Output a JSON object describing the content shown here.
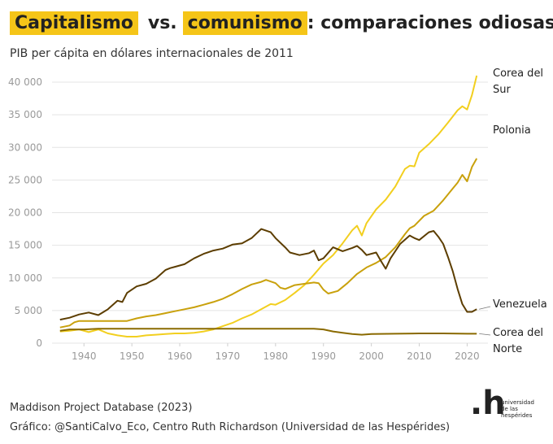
{
  "title": {
    "part1": "Capitalismo",
    "vs": "vs.",
    "part2": "comunismo",
    "rest": ": comparaciones odiosas"
  },
  "subtitle": "PIB per cápita en dólares internacionales de 2011",
  "footer": {
    "source": "Maddison Project Database (2023)",
    "credit": "Gráfico: @SantiCalvo_Eco, Centro Ruth Richardson (Universidad de las Hespérides)"
  },
  "logo": {
    "mark": ".h",
    "line1": "universidad",
    "line2": "de las",
    "line3": "hespérides"
  },
  "colors": {
    "highlight": "#f5c518",
    "corea_sur": "#f2cf1f",
    "polonia": "#c9a10c",
    "venezuela": "#5c3d00",
    "corea_norte": "#8a6a00",
    "axis_text": "#9a9a9a",
    "grid": "#e4e4e4"
  },
  "chart_data": {
    "type": "line",
    "title": "Capitalismo vs. comunismo: comparaciones odiosas",
    "ylabel": "PIB per cápita en dólares internacionales de 2011",
    "xlabel": "",
    "xlim": [
      1933,
      2024
    ],
    "ylim": [
      0,
      42000
    ],
    "x_ticks": [
      1940,
      1950,
      1960,
      1970,
      1980,
      1990,
      2000,
      2010,
      2020
    ],
    "y_ticks": [
      0,
      5000,
      10000,
      15000,
      20000,
      25000,
      30000,
      35000,
      40000
    ],
    "y_tick_labels": [
      "0",
      "5 000",
      "10 000",
      "15 000",
      "20 000",
      "25 000",
      "30 000",
      "35 000",
      "40 000"
    ],
    "grid": true,
    "series": [
      {
        "name": "Corea del Sur",
        "label_lines": [
          "Corea del",
          "Sur"
        ],
        "color": "#f2cf1f",
        "points": [
          [
            1935,
            1800
          ],
          [
            1937,
            1900
          ],
          [
            1939,
            2100
          ],
          [
            1941,
            1700
          ],
          [
            1943,
            2100
          ],
          [
            1945,
            1500
          ],
          [
            1947,
            1200
          ],
          [
            1949,
            1000
          ],
          [
            1951,
            1000
          ],
          [
            1953,
            1200
          ],
          [
            1955,
            1300
          ],
          [
            1957,
            1400
          ],
          [
            1959,
            1500
          ],
          [
            1961,
            1500
          ],
          [
            1963,
            1600
          ],
          [
            1965,
            1800
          ],
          [
            1967,
            2100
          ],
          [
            1969,
            2600
          ],
          [
            1971,
            3100
          ],
          [
            1973,
            3800
          ],
          [
            1975,
            4400
          ],
          [
            1977,
            5200
          ],
          [
            1979,
            6000
          ],
          [
            1980,
            5900
          ],
          [
            1982,
            6600
          ],
          [
            1984,
            7700
          ],
          [
            1986,
            8900
          ],
          [
            1988,
            10500
          ],
          [
            1990,
            12200
          ],
          [
            1992,
            13500
          ],
          [
            1994,
            15300
          ],
          [
            1996,
            17300
          ],
          [
            1997,
            18000
          ],
          [
            1998,
            16500
          ],
          [
            1999,
            18400
          ],
          [
            2001,
            20500
          ],
          [
            2003,
            22000
          ],
          [
            2005,
            24000
          ],
          [
            2007,
            26700
          ],
          [
            2008,
            27200
          ],
          [
            2009,
            27100
          ],
          [
            2010,
            29200
          ],
          [
            2012,
            30500
          ],
          [
            2014,
            32000
          ],
          [
            2016,
            33800
          ],
          [
            2018,
            35700
          ],
          [
            2019,
            36300
          ],
          [
            2020,
            35800
          ],
          [
            2021,
            38000
          ],
          [
            2022,
            41000
          ]
        ]
      },
      {
        "name": "Polonia",
        "label_lines": [
          "Polonia"
        ],
        "color": "#c9a10c",
        "points": [
          [
            1935,
            2400
          ],
          [
            1937,
            2700
          ],
          [
            1938,
            3200
          ],
          [
            1939,
            3400
          ],
          [
            1941,
            3400
          ],
          [
            1943,
            3400
          ],
          [
            1945,
            3400
          ],
          [
            1947,
            3400
          ],
          [
            1949,
            3400
          ],
          [
            1951,
            3800
          ],
          [
            1953,
            4100
          ],
          [
            1955,
            4300
          ],
          [
            1957,
            4600
          ],
          [
            1959,
            4900
          ],
          [
            1961,
            5200
          ],
          [
            1963,
            5500
          ],
          [
            1965,
            5900
          ],
          [
            1967,
            6300
          ],
          [
            1969,
            6800
          ],
          [
            1971,
            7500
          ],
          [
            1973,
            8300
          ],
          [
            1975,
            9000
          ],
          [
            1977,
            9400
          ],
          [
            1978,
            9700
          ],
          [
            1980,
            9200
          ],
          [
            1981,
            8500
          ],
          [
            1982,
            8300
          ],
          [
            1984,
            8900
          ],
          [
            1986,
            9100
          ],
          [
            1988,
            9300
          ],
          [
            1989,
            9200
          ],
          [
            1990,
            8200
          ],
          [
            1991,
            7600
          ],
          [
            1993,
            8000
          ],
          [
            1995,
            9200
          ],
          [
            1997,
            10600
          ],
          [
            1999,
            11600
          ],
          [
            2001,
            12300
          ],
          [
            2003,
            13200
          ],
          [
            2005,
            14700
          ],
          [
            2007,
            16700
          ],
          [
            2008,
            17600
          ],
          [
            2009,
            18000
          ],
          [
            2011,
            19500
          ],
          [
            2013,
            20300
          ],
          [
            2015,
            21900
          ],
          [
            2017,
            23700
          ],
          [
            2018,
            24600
          ],
          [
            2019,
            25800
          ],
          [
            2020,
            24800
          ],
          [
            2021,
            27000
          ],
          [
            2022,
            28300
          ]
        ]
      },
      {
        "name": "Venezuela",
        "label_lines": [
          "Venezuela"
        ],
        "color": "#5c3d00",
        "points": [
          [
            1935,
            3600
          ],
          [
            1937,
            3900
          ],
          [
            1939,
            4400
          ],
          [
            1941,
            4700
          ],
          [
            1943,
            4300
          ],
          [
            1945,
            5200
          ],
          [
            1947,
            6500
          ],
          [
            1948,
            6300
          ],
          [
            1949,
            7700
          ],
          [
            1951,
            8700
          ],
          [
            1953,
            9100
          ],
          [
            1955,
            9900
          ],
          [
            1957,
            11200
          ],
          [
            1958,
            11500
          ],
          [
            1959,
            11700
          ],
          [
            1961,
            12100
          ],
          [
            1963,
            13000
          ],
          [
            1965,
            13700
          ],
          [
            1967,
            14200
          ],
          [
            1969,
            14500
          ],
          [
            1971,
            15100
          ],
          [
            1973,
            15300
          ],
          [
            1975,
            16100
          ],
          [
            1977,
            17500
          ],
          [
            1979,
            17000
          ],
          [
            1980,
            16100
          ],
          [
            1982,
            14700
          ],
          [
            1983,
            13900
          ],
          [
            1985,
            13500
          ],
          [
            1987,
            13800
          ],
          [
            1988,
            14200
          ],
          [
            1989,
            12700
          ],
          [
            1990,
            13000
          ],
          [
            1992,
            14700
          ],
          [
            1994,
            14100
          ],
          [
            1996,
            14600
          ],
          [
            1997,
            14900
          ],
          [
            1998,
            14300
          ],
          [
            1999,
            13500
          ],
          [
            2001,
            13900
          ],
          [
            2002,
            12600
          ],
          [
            2003,
            11400
          ],
          [
            2004,
            13000
          ],
          [
            2006,
            15200
          ],
          [
            2008,
            16500
          ],
          [
            2009,
            16100
          ],
          [
            2010,
            15800
          ],
          [
            2012,
            17000
          ],
          [
            2013,
            17200
          ],
          [
            2014,
            16300
          ],
          [
            2015,
            15200
          ],
          [
            2016,
            13200
          ],
          [
            2017,
            11000
          ],
          [
            2018,
            8300
          ],
          [
            2019,
            6000
          ],
          [
            2020,
            4800
          ],
          [
            2021,
            4800
          ],
          [
            2022,
            5200
          ]
        ]
      },
      {
        "name": "Corea del Norte",
        "label_lines": [
          "Corea del",
          "Norte"
        ],
        "color": "#8a6a00",
        "points": [
          [
            1935,
            1900
          ],
          [
            1937,
            2100
          ],
          [
            1940,
            2100
          ],
          [
            1943,
            2200
          ],
          [
            1950,
            2200
          ],
          [
            1960,
            2200
          ],
          [
            1970,
            2200
          ],
          [
            1980,
            2200
          ],
          [
            1988,
            2200
          ],
          [
            1990,
            2100
          ],
          [
            1992,
            1800
          ],
          [
            1994,
            1600
          ],
          [
            1996,
            1400
          ],
          [
            1998,
            1300
          ],
          [
            2000,
            1400
          ],
          [
            2005,
            1450
          ],
          [
            2010,
            1500
          ],
          [
            2015,
            1500
          ],
          [
            2020,
            1450
          ],
          [
            2022,
            1450
          ]
        ]
      }
    ]
  }
}
